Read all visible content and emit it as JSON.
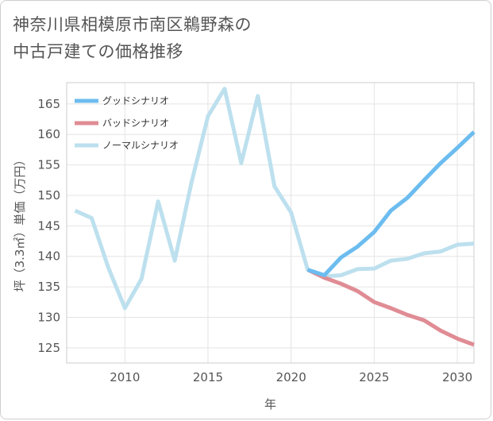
{
  "title": {
    "line1": "神奈川県相模原市南区鵜野森の",
    "line2": "中古戸建ての価格推移"
  },
  "chart_data": {
    "type": "line",
    "title": "神奈川県相模原市南区鵜野森の中古戸建ての価格推移",
    "xlabel": "年",
    "ylabel": "坪（3.3㎡）単価（万円）",
    "xlim": [
      2006.5,
      2031
    ],
    "ylim": [
      122.5,
      168.5
    ],
    "xticks": [
      2010,
      2015,
      2020,
      2025,
      2030
    ],
    "yticks": [
      125,
      130,
      135,
      140,
      145,
      150,
      155,
      160,
      165
    ],
    "grid": true,
    "legend_position": "top-left",
    "series": [
      {
        "name": "グッドシナリオ",
        "color": "#6cbcef",
        "x": [
          2021,
          2022,
          2023,
          2024,
          2025,
          2026,
          2027,
          2028,
          2029,
          2030,
          2031
        ],
        "y": [
          137.8,
          136.9,
          139.8,
          141.6,
          144.0,
          147.5,
          149.6,
          152.5,
          155.3,
          157.8,
          160.4
        ]
      },
      {
        "name": "バッドシナリオ",
        "color": "#e08c94",
        "x": [
          2021,
          2022,
          2023,
          2024,
          2025,
          2026,
          2027,
          2028,
          2029,
          2030,
          2031
        ],
        "y": [
          137.8,
          136.5,
          135.5,
          134.3,
          132.5,
          131.5,
          130.4,
          129.5,
          127.8,
          126.5,
          125.5
        ]
      },
      {
        "name": "ノーマルシナリオ",
        "color": "#bde0ee",
        "x": [
          2007,
          2008,
          2009,
          2010,
          2011,
          2012,
          2013,
          2014,
          2015,
          2016,
          2017,
          2018,
          2019,
          2020,
          2021,
          2022,
          2023,
          2024,
          2025,
          2026,
          2027,
          2028,
          2029,
          2030,
          2031
        ],
        "y": [
          147.5,
          146.3,
          138.2,
          131.5,
          136.3,
          149.0,
          139.3,
          152.0,
          163.0,
          167.5,
          155.3,
          166.3,
          151.5,
          147.2,
          137.8,
          136.7,
          136.9,
          137.9,
          138.0,
          139.3,
          139.6,
          140.5,
          140.8,
          141.9,
          142.1
        ]
      }
    ]
  }
}
